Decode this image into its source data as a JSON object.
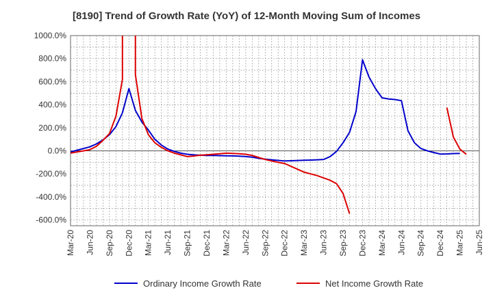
{
  "chart_data": {
    "type": "line",
    "title": "[8190]  Trend of Growth Rate (YoY) of 12-Month Moving Sum of Incomes",
    "xlabel": "",
    "ylabel": "",
    "x_ticks": [
      "Mar-20",
      "Jun-20",
      "Sep-20",
      "Dec-20",
      "Mar-21",
      "Jun-21",
      "Sep-21",
      "Dec-21",
      "Mar-22",
      "Jun-22",
      "Sep-22",
      "Dec-22",
      "Mar-23",
      "Jun-23",
      "Sep-23",
      "Dec-23",
      "Mar-24",
      "Jun-24",
      "Sep-24",
      "Dec-24",
      "Mar-25",
      "Jun-25"
    ],
    "y_ticks": [
      "1000.0%",
      "800.0%",
      "600.0%",
      "400.0%",
      "200.0%",
      "0.0%",
      "-200.0%",
      "-400.0%",
      "-600.0%"
    ],
    "y_tick_values": [
      1000,
      800,
      600,
      400,
      200,
      0,
      -200,
      -400,
      -600
    ],
    "ylim": [
      -650,
      1000
    ],
    "x_range": [
      "Mar-20",
      "Jun-25"
    ],
    "grid": true,
    "legend_position": "bottom",
    "series": [
      {
        "name": "Ordinary Income Growth Rate",
        "color": "#0000cc",
        "points": [
          [
            "Mar-20",
            -10
          ],
          [
            "Apr-20",
            5
          ],
          [
            "May-20",
            20
          ],
          [
            "Jun-20",
            35
          ],
          [
            "Jul-20",
            60
          ],
          [
            "Aug-20",
            95
          ],
          [
            "Sep-20",
            140
          ],
          [
            "Oct-20",
            210
          ],
          [
            "Nov-20",
            330
          ],
          [
            "Dec-20",
            540
          ],
          [
            "Jan-21",
            350
          ],
          [
            "Feb-21",
            250
          ],
          [
            "Mar-21",
            180
          ],
          [
            "Apr-21",
            100
          ],
          [
            "May-21",
            50
          ],
          [
            "Jun-21",
            15
          ],
          [
            "Jul-21",
            -5
          ],
          [
            "Aug-21",
            -20
          ],
          [
            "Sep-21",
            -30
          ],
          [
            "Oct-21",
            -35
          ],
          [
            "Nov-21",
            -38
          ],
          [
            "Dec-21",
            -40
          ],
          [
            "Jan-22",
            -40
          ],
          [
            "Feb-22",
            -42
          ],
          [
            "Mar-22",
            -43
          ],
          [
            "Apr-22",
            -44
          ],
          [
            "May-22",
            -46
          ],
          [
            "Jun-22",
            -50
          ],
          [
            "Jul-22",
            -55
          ],
          [
            "Aug-22",
            -65
          ],
          [
            "Sep-22",
            -72
          ],
          [
            "Oct-22",
            -78
          ],
          [
            "Nov-22",
            -83
          ],
          [
            "Dec-22",
            -88
          ],
          [
            "Jan-23",
            -86
          ],
          [
            "Feb-23",
            -84
          ],
          [
            "Mar-23",
            -82
          ],
          [
            "Apr-23",
            -80
          ],
          [
            "May-23",
            -78
          ],
          [
            "Jun-23",
            -75
          ],
          [
            "Jul-23",
            -50
          ],
          [
            "Aug-23",
            -5
          ],
          [
            "Sep-23",
            70
          ],
          [
            "Oct-23",
            160
          ],
          [
            "Nov-23",
            340
          ],
          [
            "Dec-23",
            790
          ],
          [
            "Jan-24",
            640
          ],
          [
            "Feb-24",
            540
          ],
          [
            "Mar-24",
            460
          ],
          [
            "Apr-24",
            450
          ],
          [
            "May-24",
            445
          ],
          [
            "Jun-24",
            435
          ],
          [
            "Jul-24",
            175
          ],
          [
            "Aug-24",
            70
          ],
          [
            "Sep-24",
            20
          ],
          [
            "Oct-24",
            0
          ],
          [
            "Nov-24",
            -15
          ],
          [
            "Dec-24",
            -28
          ],
          [
            "Jan-25",
            -27
          ],
          [
            "Feb-25",
            -24
          ],
          [
            "Mar-25",
            -22
          ]
        ]
      },
      {
        "name": "Net Income Growth Rate",
        "color": "#dd0000",
        "segments": [
          [
            [
              "Mar-20",
              -20
            ],
            [
              "Apr-20",
              -10
            ],
            [
              "May-20",
              0
            ],
            [
              "Jun-20",
              10
            ],
            [
              "Jul-20",
              40
            ],
            [
              "Aug-20",
              90
            ],
            [
              "Sep-20",
              150
            ],
            [
              "Oct-20",
              300
            ],
            [
              "Nov-20",
              620
            ],
            [
              "Nov-20",
              1000
            ]
          ],
          [
            [
              "Jan-21",
              1000
            ],
            [
              "Jan-21",
              660
            ],
            [
              "Feb-21",
              280
            ],
            [
              "Mar-21",
              140
            ],
            [
              "Apr-21",
              70
            ],
            [
              "May-21",
              30
            ],
            [
              "Jun-21",
              0
            ],
            [
              "Jul-21",
              -20
            ],
            [
              "Aug-21",
              -35
            ],
            [
              "Sep-21",
              -50
            ],
            [
              "Oct-21",
              -45
            ],
            [
              "Nov-21",
              -38
            ],
            [
              "Dec-21",
              -34
            ],
            [
              "Jan-22",
              -30
            ],
            [
              "Feb-22",
              -25
            ],
            [
              "Mar-22",
              -20
            ],
            [
              "Apr-22",
              -22
            ],
            [
              "May-22",
              -25
            ],
            [
              "Jun-22",
              -30
            ],
            [
              "Jul-22",
              -40
            ],
            [
              "Aug-22",
              -58
            ],
            [
              "Sep-22",
              -75
            ],
            [
              "Oct-22",
              -88
            ],
            [
              "Nov-22",
              -100
            ],
            [
              "Dec-22",
              -110
            ],
            [
              "Jan-23",
              -135
            ],
            [
              "Feb-23",
              -160
            ],
            [
              "Mar-23",
              -185
            ],
            [
              "Apr-23",
              -200
            ],
            [
              "May-23",
              -215
            ],
            [
              "Jun-23",
              -235
            ],
            [
              "Jul-23",
              -255
            ],
            [
              "Aug-23",
              -285
            ],
            [
              "Sep-23",
              -370
            ],
            [
              "Oct-23",
              -545
            ]
          ],
          [
            [
              "Jan-25",
              375
            ],
            [
              "Feb-25",
              120
            ],
            [
              "Mar-25",
              15
            ],
            [
              "Apr-25",
              -30
            ]
          ]
        ]
      }
    ]
  }
}
